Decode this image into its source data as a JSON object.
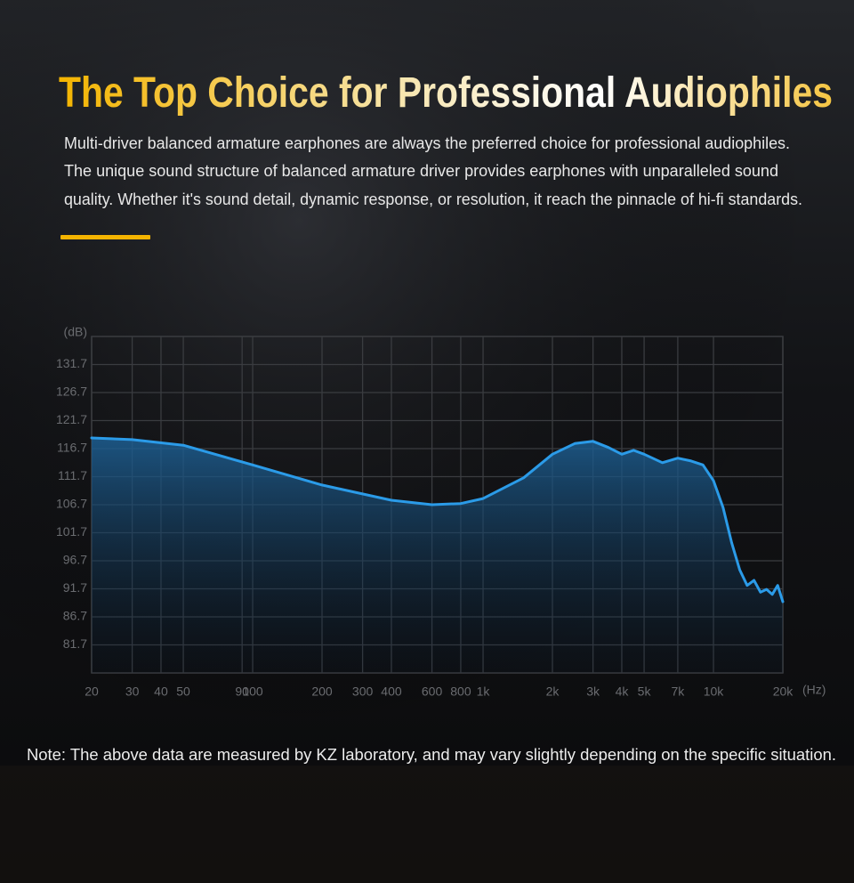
{
  "header": {
    "title": "The Top Choice for Professional Audiophiles",
    "description": [
      "Multi-driver balanced armature earphones are always the preferred choice for professional audiophiles.",
      "The unique sound structure of balanced armature driver provides earphones with unparalleled sound",
      "quality. Whether it's sound detail, dynamic response, or resolution, it reach the pinnacle of hi-fi standards."
    ]
  },
  "chart_data": {
    "type": "line",
    "ylabel": "(dB)",
    "xlabel": "(Hz)",
    "xscale": "log",
    "grid": true,
    "xlim": [
      20,
      20000
    ],
    "ylim": [
      76.7,
      136.7
    ],
    "xticks": [
      20,
      30,
      40,
      50,
      90,
      100,
      200,
      300,
      400,
      600,
      800,
      {
        "value": 1000,
        "label": "1k"
      },
      {
        "value": 2000,
        "label": "2k"
      },
      {
        "value": 3000,
        "label": "3k"
      },
      {
        "value": 4000,
        "label": "4k"
      },
      {
        "value": 5000,
        "label": "5k"
      },
      {
        "value": 7000,
        "label": "7k"
      },
      {
        "value": 10000,
        "label": "10k"
      },
      {
        "value": 20000,
        "label": "20k"
      }
    ],
    "yticks": [
      81.7,
      86.7,
      91.7,
      96.7,
      101.7,
      106.7,
      111.7,
      116.7,
      121.7,
      126.7,
      131.7
    ],
    "x": [
      20,
      30,
      50,
      100,
      200,
      400,
      600,
      800,
      1000,
      1500,
      2000,
      2500,
      3000,
      3500,
      4000,
      4500,
      5000,
      6000,
      7000,
      8000,
      9000,
      10000,
      11000,
      12000,
      13000,
      14000,
      15000,
      16000,
      17000,
      18000,
      19000,
      20000
    ],
    "series": [
      {
        "color": "#2b9be8",
        "values": [
          118.6,
          118.3,
          117.3,
          113.8,
          110.2,
          107.5,
          106.7,
          106.9,
          107.8,
          111.5,
          115.7,
          117.6,
          118.0,
          116.9,
          115.7,
          116.4,
          115.7,
          114.2,
          115.0,
          114.5,
          113.8,
          111.0,
          106.2,
          99.9,
          95.1,
          92.3,
          93.2,
          91.1,
          91.6,
          90.7,
          92.3,
          89.4
        ]
      }
    ]
  },
  "note": "Note: The above data are measured by KZ laboratory, and may vary slightly depending on the specific situation."
}
